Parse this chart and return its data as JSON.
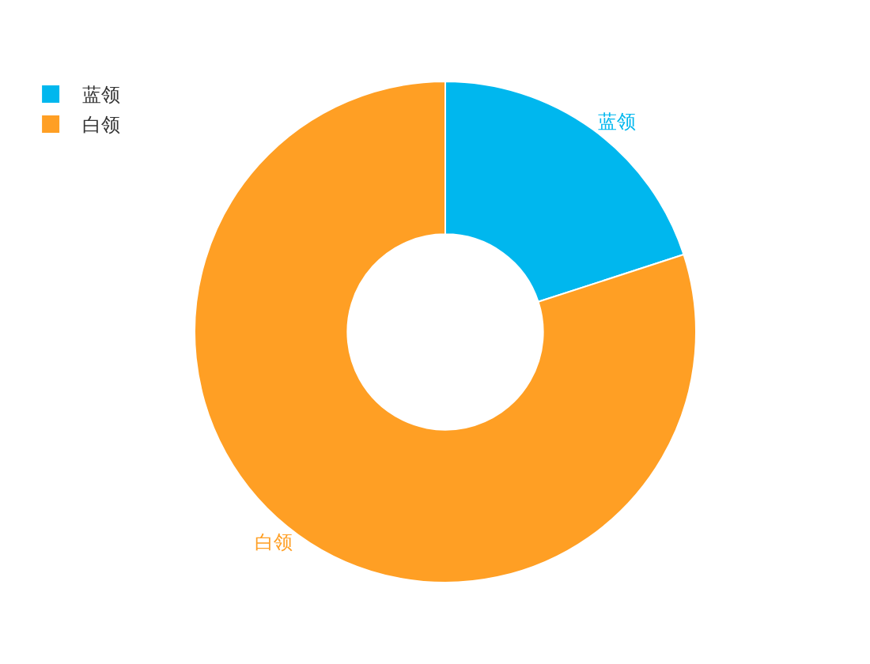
{
  "chart_data": {
    "type": "donut",
    "categories": [
      "蓝领",
      "白领"
    ],
    "values": [
      20,
      80
    ],
    "colors": [
      "#00b7ee",
      "#ff9f24"
    ],
    "legend": "top left"
  }
}
